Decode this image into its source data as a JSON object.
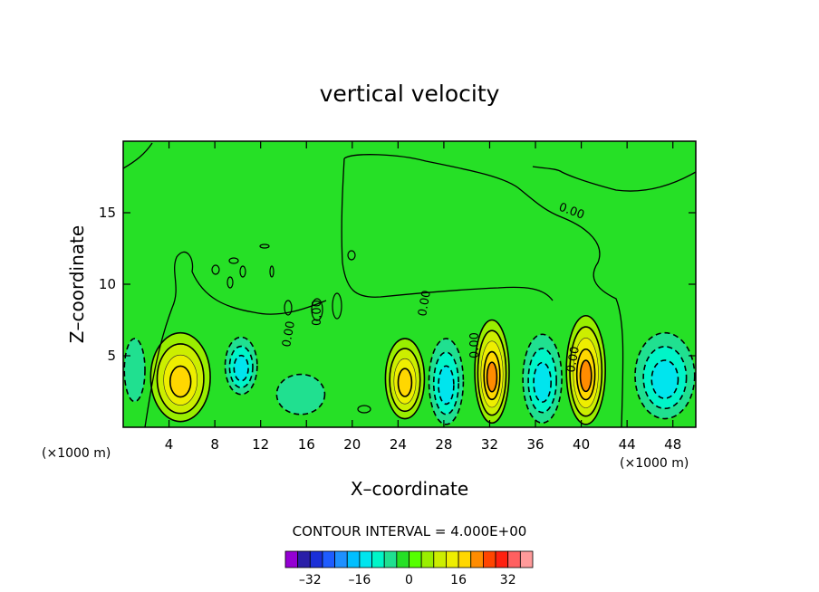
{
  "chart_data": {
    "type": "heatmap",
    "title": "vertical velocity",
    "xlabel": "X–coordinate",
    "ylabel": "Z–coordinate",
    "x_unit": "(×1000 m)",
    "z_unit": "(×1000 m)",
    "xlim": [
      0,
      50
    ],
    "ylim": [
      0,
      20
    ],
    "x_ticks": [
      4,
      8,
      12,
      16,
      20,
      24,
      28,
      32,
      36,
      40,
      44,
      48
    ],
    "x_tick_labels": [
      "4",
      "8",
      "12",
      "16",
      "20",
      "24",
      "28",
      "32",
      "36",
      "40",
      "44",
      "48"
    ],
    "y_ticks": [
      5,
      10,
      15
    ],
    "y_tick_labels": [
      "5",
      "10",
      "15"
    ],
    "contour_interval_text": "CONTOUR INTERVAL = 4.000E+00",
    "contour_labels": [
      "0.00",
      "0.00",
      "0.00",
      "0.00",
      "0.00",
      "0.00"
    ],
    "colorbar": {
      "levels": [
        -36,
        -32,
        -28,
        -24,
        -20,
        -16,
        -12,
        -8,
        -4,
        0,
        4,
        8,
        12,
        16,
        20,
        24,
        28,
        32,
        36
      ],
      "colors": [
        "#9400d3",
        "#2a1fa8",
        "#1a2fd8",
        "#1e5cff",
        "#1e90ff",
        "#00bfff",
        "#00e5ee",
        "#00f5c8",
        "#20e090",
        "#26e026",
        "#55ff00",
        "#99ee00",
        "#ccee00",
        "#eeee00",
        "#ffd700",
        "#ff8c00",
        "#ff4500",
        "#ff2010",
        "#ff6060",
        "#ff9a9a"
      ],
      "tick_values": [
        -32,
        -16,
        0,
        16,
        32
      ],
      "tick_labels": [
        "–32",
        "–16",
        "0",
        "16",
        "32"
      ]
    },
    "background_color": "#26e026",
    "features": [
      {
        "kind": "updraft",
        "x": 5.0,
        "z": 3.5,
        "rx": 2.6,
        "rz": 3.1,
        "peak": 16
      },
      {
        "kind": "downdraft",
        "x": 10.3,
        "z": 4.3,
        "rx": 1.4,
        "rz": 2.0,
        "peak": -12
      },
      {
        "kind": "downdraft",
        "x": 15.5,
        "z": 2.3,
        "rx": 2.1,
        "rz": 1.4,
        "peak": -4
      },
      {
        "kind": "updraft",
        "x": 24.6,
        "z": 3.4,
        "rx": 1.7,
        "rz": 2.8,
        "peak": 16
      },
      {
        "kind": "downdraft",
        "x": 28.2,
        "z": 3.2,
        "rx": 1.5,
        "rz": 3.0,
        "peak": -12
      },
      {
        "kind": "updraft",
        "x": 32.2,
        "z": 3.9,
        "rx": 1.5,
        "rz": 3.6,
        "peak": 20
      },
      {
        "kind": "downdraft",
        "x": 36.6,
        "z": 3.4,
        "rx": 1.7,
        "rz": 3.1,
        "peak": -12
      },
      {
        "kind": "updraft",
        "x": 40.4,
        "z": 4.0,
        "rx": 1.7,
        "rz": 3.8,
        "peak": 20
      },
      {
        "kind": "downdraft",
        "x": 47.3,
        "z": 3.6,
        "rx": 2.6,
        "rz": 3.0,
        "peak": -12
      },
      {
        "kind": "downdraft",
        "x": 1.0,
        "z": 4.0,
        "rx": 0.9,
        "rz": 2.2,
        "peak": -4
      }
    ]
  }
}
